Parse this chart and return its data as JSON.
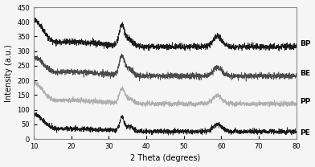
{
  "xlim": [
    10,
    80
  ],
  "ylim": [
    0,
    450
  ],
  "xlabel": "2 Theta (degrees)",
  "ylabel": "Intensity (a.u.)",
  "yticks": [
    0,
    50,
    100,
    150,
    200,
    250,
    300,
    350,
    400,
    450
  ],
  "xticks": [
    10,
    20,
    30,
    40,
    50,
    60,
    70,
    80
  ],
  "labels": [
    "BP",
    "BE",
    "PP",
    "PE"
  ],
  "colors": [
    "#1a1a1a",
    "#4a4a4a",
    "#b0b0b0",
    "#1a1a1a"
  ],
  "background": "#f5f5f5",
  "figsize": [
    3.92,
    2.08
  ],
  "dpi": 100,
  "noise_scale": 6,
  "seed": 42,
  "label_positions": [
    [
      81,
      325,
      "BP"
    ],
    [
      81,
      225,
      "BE"
    ],
    [
      81,
      127,
      "PP"
    ],
    [
      81,
      22,
      "PE"
    ]
  ]
}
